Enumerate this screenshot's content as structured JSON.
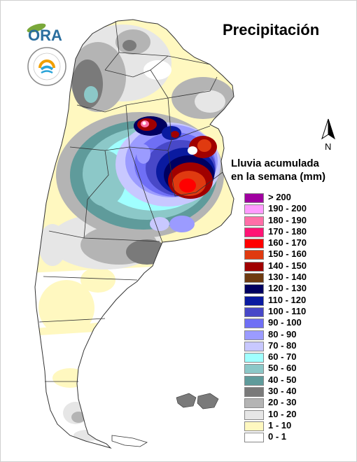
{
  "header": {
    "title": "Precipitación",
    "logo_text": "ORA",
    "seal_text": "INSTITUTO NACIONAL DE METEOROLOGÍA · ARGENTINA"
  },
  "north": {
    "label": "N"
  },
  "legend": {
    "title_line1": "Lluvia acumulada",
    "title_line2": "en la semana (mm)",
    "items": [
      {
        "label": "> 200",
        "color": "#a000a0"
      },
      {
        "label": "190 - 200",
        "color": "#ff9bff"
      },
      {
        "label": "180 - 190",
        "color": "#ff6fa8"
      },
      {
        "label": "170 - 180",
        "color": "#ff1475"
      },
      {
        "label": "160 - 170",
        "color": "#ff0000"
      },
      {
        "label": "150 - 160",
        "color": "#e03a10"
      },
      {
        "label": "140 - 150",
        "color": "#a00000"
      },
      {
        "label": "130 - 140",
        "color": "#6e3a10"
      },
      {
        "label": "120 - 130",
        "color": "#000060"
      },
      {
        "label": "110 - 120",
        "color": "#0a1aa0"
      },
      {
        "label": "100 - 110",
        "color": "#4848c8"
      },
      {
        "label": "90 - 100",
        "color": "#6f6ff5"
      },
      {
        "label": "80 - 90",
        "color": "#9b9bff"
      },
      {
        "label": "70 - 80",
        "color": "#c8c8ff"
      },
      {
        "label": "60 - 70",
        "color": "#a0ffff"
      },
      {
        "label": "50 - 60",
        "color": "#8cc8c8"
      },
      {
        "label": "40 - 50",
        "color": "#5f9b9b"
      },
      {
        "label": "30 - 40",
        "color": "#7a7a7a"
      },
      {
        "label": "20 - 30",
        "color": "#b4b4b4"
      },
      {
        "label": "10 - 20",
        "color": "#e6e6e6"
      },
      {
        "label": "1 - 10",
        "color": "#fff8c0"
      },
      {
        "label": "0 - 1",
        "color": "#ffffff"
      }
    ]
  }
}
